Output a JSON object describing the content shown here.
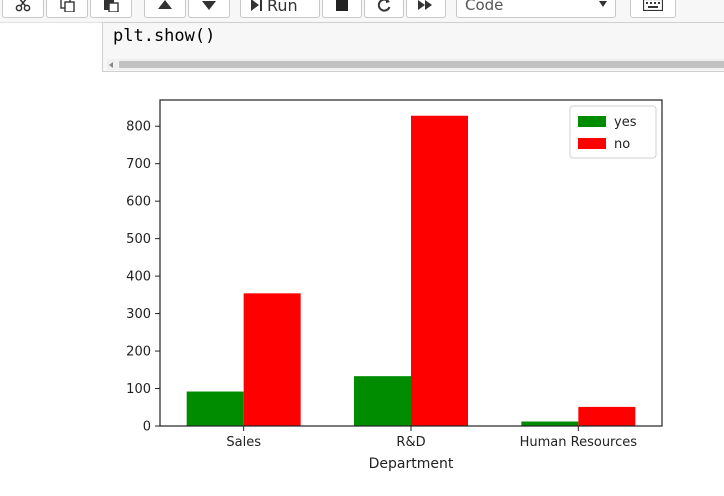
{
  "toolbar": {
    "buttons": [
      {
        "icon": "scissors-icon"
      },
      {
        "icon": "copy-icon"
      },
      {
        "icon": "paste-icon"
      },
      {
        "icon": "move-up-icon"
      },
      {
        "icon": "move-down-icon"
      }
    ],
    "run_label": "Run",
    "cell_type": "Code",
    "icons": {
      "run": "step-forward-icon",
      "stop": "stop-icon",
      "restart": "restart-icon",
      "fast_forward": "fast-forward-icon",
      "keyboard": "keyboard-icon"
    }
  },
  "cell": {
    "code": "plt.show()"
  },
  "chart_data": {
    "type": "bar",
    "categories": [
      "Sales",
      "R&D",
      "Human Resources"
    ],
    "series": [
      {
        "name": "yes",
        "color": "#008c00",
        "values": [
          92,
          133,
          12
        ]
      },
      {
        "name": "no",
        "color": "#ff0000",
        "values": [
          354,
          828,
          51
        ]
      }
    ],
    "xlabel": "Department",
    "ylabel": "",
    "ylim": [
      0,
      870
    ],
    "yticks": [
      0,
      100,
      200,
      300,
      400,
      500,
      600,
      700,
      800
    ],
    "legend_position": "top-right",
    "grid": false
  }
}
